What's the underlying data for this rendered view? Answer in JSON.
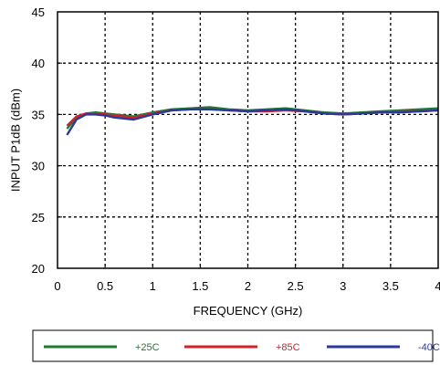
{
  "chart_data": {
    "type": "line",
    "title": "",
    "xlabel": "FREQUENCY (GHz)",
    "ylabel": "INPUT P1dB (dBm)",
    "xlim": [
      0,
      4
    ],
    "ylim": [
      20,
      45
    ],
    "xticks": [
      "0",
      "0.5",
      "1",
      "1.5",
      "2",
      "2.5",
      "3",
      "3.5",
      "4"
    ],
    "yticks": [
      "20",
      "25",
      "30",
      "35",
      "40",
      "45"
    ],
    "grid": true,
    "grid_style": "dotted",
    "legend_position": "bottom",
    "series": [
      {
        "name": "+25C",
        "color": "#1e7b34",
        "x": [
          0.1,
          0.2,
          0.3,
          0.4,
          0.5,
          0.6,
          0.8,
          1.0,
          1.2,
          1.4,
          1.6,
          1.8,
          2.0,
          2.2,
          2.4,
          2.6,
          2.8,
          3.0,
          3.2,
          3.4,
          3.6,
          3.8,
          4.0
        ],
        "y": [
          33.6,
          34.7,
          35.1,
          35.2,
          35.1,
          35.0,
          34.8,
          35.2,
          35.5,
          35.6,
          35.7,
          35.5,
          35.4,
          35.5,
          35.6,
          35.4,
          35.2,
          35.1,
          35.2,
          35.3,
          35.4,
          35.5,
          35.6
        ]
      },
      {
        "name": "+85C",
        "color": "#d42027",
        "x": [
          0.1,
          0.2,
          0.3,
          0.4,
          0.5,
          0.6,
          0.8,
          1.0,
          1.2,
          1.4,
          1.6,
          1.8,
          2.0,
          2.2,
          2.4,
          2.6,
          2.8,
          3.0,
          3.2,
          3.4,
          3.6,
          3.8,
          4.0
        ],
        "y": [
          33.9,
          34.8,
          35.1,
          35.1,
          35.0,
          34.9,
          34.7,
          35.1,
          35.4,
          35.5,
          35.5,
          35.4,
          35.3,
          35.3,
          35.4,
          35.3,
          35.1,
          35.0,
          35.1,
          35.2,
          35.3,
          35.3,
          35.4
        ]
      },
      {
        "name": "-40C",
        "color": "#2b3a99",
        "x": [
          0.1,
          0.2,
          0.3,
          0.4,
          0.5,
          0.6,
          0.8,
          1.0,
          1.2,
          1.4,
          1.6,
          1.8,
          2.0,
          2.2,
          2.4,
          2.6,
          2.8,
          3.0,
          3.2,
          3.4,
          3.6,
          3.8,
          4.0
        ],
        "y": [
          33.0,
          34.5,
          35.0,
          35.0,
          34.9,
          34.7,
          34.5,
          35.0,
          35.4,
          35.5,
          35.5,
          35.4,
          35.3,
          35.4,
          35.5,
          35.3,
          35.1,
          35.0,
          35.1,
          35.2,
          35.2,
          35.3,
          35.4
        ]
      }
    ]
  }
}
